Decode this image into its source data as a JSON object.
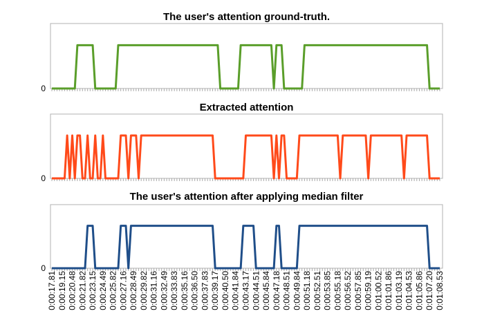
{
  "chart_data": [
    {
      "type": "line",
      "title": "The user's attention ground-truth.",
      "ylim": [
        0,
        1.5
      ],
      "yticks": [
        0
      ],
      "series": [
        {
          "color": "#5a9e2a",
          "values": [
            0,
            0,
            0,
            0,
            0,
            0,
            0,
            0,
            0,
            0,
            1,
            1,
            1,
            1,
            1,
            1,
            1,
            0,
            0,
            0,
            0,
            0,
            0,
            0,
            0,
            0,
            1,
            1,
            1,
            1,
            1,
            1,
            1,
            1,
            1,
            1,
            1,
            1,
            1,
            1,
            1,
            1,
            1,
            1,
            1,
            1,
            1,
            1,
            1,
            1,
            1,
            1,
            1,
            1,
            1,
            1,
            1,
            1,
            1,
            1,
            1,
            1,
            1,
            1,
            1,
            1,
            0,
            0,
            0,
            0,
            0,
            0,
            0,
            0,
            1,
            1,
            1,
            1,
            1,
            1,
            1,
            1,
            1,
            1,
            1,
            1,
            1,
            0,
            1,
            1,
            1,
            0,
            0,
            0,
            0,
            0,
            0,
            0,
            0,
            1,
            1,
            1,
            1,
            1,
            1,
            1,
            1,
            1,
            1,
            1,
            1,
            1,
            1,
            1,
            1,
            1,
            1,
            1,
            1,
            1,
            1,
            1,
            1,
            1,
            1,
            1,
            1,
            1,
            1,
            1,
            1,
            1,
            1,
            1,
            1,
            1,
            1,
            1,
            1,
            1,
            1,
            1,
            1,
            1,
            1,
            1,
            1,
            1,
            0,
            0,
            0,
            0,
            0
          ]
        }
      ]
    },
    {
      "type": "line",
      "title": "Extracted attention",
      "ylim": [
        0,
        1.5
      ],
      "yticks": [
        0
      ],
      "series": [
        {
          "color": "#ff4a1a",
          "values": [
            0,
            0,
            0,
            0,
            0,
            0,
            1,
            0,
            1,
            0,
            1,
            1,
            0,
            0,
            1,
            0,
            0,
            1,
            0,
            0,
            1,
            0,
            0,
            0,
            0,
            0,
            0,
            1,
            1,
            1,
            0,
            1,
            1,
            1,
            0,
            1,
            1,
            1,
            1,
            1,
            1,
            1,
            1,
            1,
            1,
            1,
            1,
            1,
            1,
            1,
            1,
            1,
            1,
            1,
            1,
            1,
            1,
            1,
            1,
            1,
            1,
            1,
            1,
            1,
            0,
            0,
            0,
            0,
            0,
            0,
            0,
            0,
            0,
            0,
            0,
            0,
            1,
            1,
            1,
            1,
            1,
            1,
            1,
            1,
            1,
            1,
            1,
            0,
            1,
            0,
            1,
            1,
            0,
            0,
            0,
            0,
            0,
            1,
            1,
            1,
            1,
            1,
            1,
            1,
            1,
            1,
            1,
            1,
            1,
            1,
            1,
            1,
            1,
            0,
            1,
            1,
            1,
            1,
            1,
            1,
            1,
            1,
            1,
            1,
            0,
            1,
            1,
            1,
            1,
            1,
            1,
            1,
            1,
            1,
            1,
            1,
            1,
            1,
            0,
            1,
            1,
            1,
            1,
            1,
            1,
            1,
            1,
            1,
            0,
            0,
            0,
            0,
            0
          ]
        }
      ]
    },
    {
      "type": "line",
      "title": "The user's attention after applying median filter",
      "ylim": [
        0,
        1.5
      ],
      "yticks": [
        0
      ],
      "categories": [
        "0:00:17.81",
        null,
        null,
        null,
        "0:00:19.15",
        null,
        null,
        null,
        "0:00:20.48",
        null,
        null,
        null,
        "0:00:21.82",
        null,
        null,
        null,
        "0:00:23.15",
        null,
        null,
        null,
        "0:00:24.49",
        null,
        null,
        null,
        "0:00:25.82",
        null,
        null,
        null,
        "0:00:27.16",
        null,
        null,
        null,
        "0:00:28.49",
        null,
        null,
        null,
        "0:00:29.82",
        null,
        null,
        null,
        "0:00:31.16",
        null,
        null,
        null,
        "0:00:32.49",
        null,
        null,
        null,
        "0:00:33.83",
        null,
        null,
        null,
        "0:00:35.16",
        null,
        null,
        null,
        "0:00:36.50",
        null,
        null,
        null,
        "0:00:37.83",
        null,
        null,
        null,
        "0:00:39.17",
        null,
        null,
        null,
        "0:00:40.50",
        null,
        null,
        null,
        "0:00:41.84",
        null,
        null,
        null,
        "0:00:43.17",
        null,
        null,
        null,
        "0:00:44.51",
        null,
        null,
        null,
        "0:00:45.84",
        null,
        null,
        null,
        "0:00:47.18",
        null,
        null,
        null,
        "0:00:48.51",
        null,
        null,
        null,
        "0:00:49.84",
        null,
        null,
        null,
        "0:00:51.18",
        null,
        null,
        null,
        "0:00:52.51",
        null,
        null,
        null,
        "0:00:53.85",
        null,
        null,
        null,
        "0:00:55.18",
        null,
        null,
        null,
        "0:00:56.52",
        null,
        null,
        null,
        "0:00:57.85",
        null,
        null,
        null,
        "0:00:59.19",
        null,
        null,
        null,
        "0:01:00.52",
        null,
        null,
        null,
        "0:01:01.86",
        null,
        null,
        null,
        "0:01:03.19",
        null,
        null,
        null,
        "0:01:04.53",
        null,
        null,
        null,
        "0:01:05.86",
        null,
        null,
        null,
        "0:01:07.20",
        null,
        null,
        null,
        "0:01:08.53"
      ],
      "series": [
        {
          "color": "#1f4e89",
          "values": [
            0,
            0,
            0,
            0,
            0,
            0,
            0,
            0,
            0,
            0,
            0,
            0,
            0,
            0,
            1,
            1,
            1,
            0,
            0,
            0,
            0,
            0,
            0,
            0,
            0,
            0,
            0,
            1,
            1,
            1,
            0,
            1,
            1,
            1,
            1,
            1,
            1,
            1,
            1,
            1,
            1,
            1,
            1,
            1,
            1,
            1,
            1,
            1,
            1,
            1,
            1,
            1,
            1,
            1,
            1,
            1,
            1,
            1,
            1,
            1,
            1,
            1,
            1,
            1,
            0,
            0,
            0,
            0,
            0,
            0,
            0,
            0,
            0,
            0,
            0,
            1,
            1,
            1,
            1,
            1,
            0,
            0,
            0,
            0,
            0,
            0,
            0,
            0,
            1,
            1,
            0,
            0,
            0,
            0,
            0,
            0,
            0,
            1,
            1,
            1,
            1,
            1,
            1,
            1,
            1,
            1,
            1,
            1,
            1,
            1,
            1,
            1,
            1,
            1,
            1,
            1,
            1,
            1,
            1,
            1,
            1,
            1,
            1,
            1,
            1,
            1,
            1,
            1,
            1,
            1,
            1,
            1,
            1,
            1,
            1,
            1,
            1,
            1,
            1,
            1,
            1,
            1,
            1,
            1,
            1,
            1,
            1,
            1,
            0,
            0,
            0,
            0,
            0
          ]
        }
      ]
    }
  ]
}
